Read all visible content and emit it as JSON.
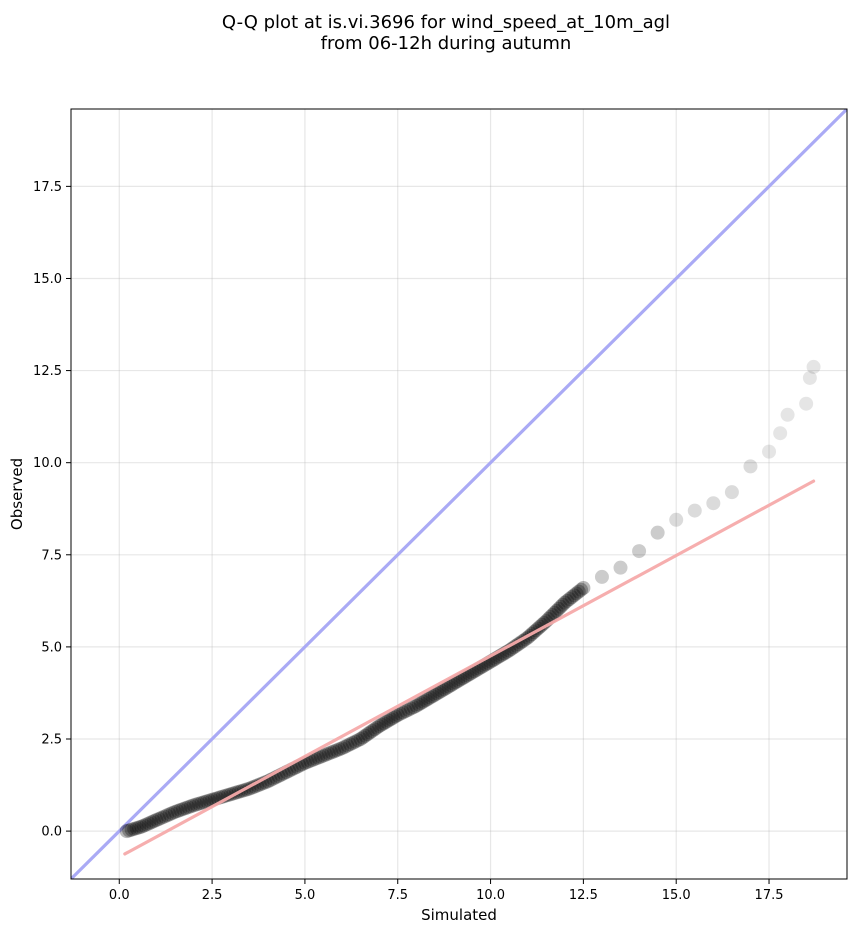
{
  "chart_data": {
    "type": "scatter",
    "title_lines": [
      "Q-Q plot at is.vi.3696 for wind_speed_at_10m_agl",
      "from 06-12h during autumn"
    ],
    "xlabel": "Simulated",
    "ylabel": "Observed",
    "xlim": [
      -1.3,
      19.6
    ],
    "ylim": [
      -1.3,
      19.6
    ],
    "xticks": [
      0.0,
      2.5,
      5.0,
      7.5,
      10.0,
      12.5,
      15.0,
      17.5
    ],
    "yticks": [
      0.0,
      2.5,
      5.0,
      7.5,
      10.0,
      12.5,
      15.0,
      17.5
    ],
    "xtick_labels": [
      "0.0",
      "2.5",
      "5.0",
      "7.5",
      "10.0",
      "12.5",
      "15.0",
      "17.5"
    ],
    "ytick_labels": [
      "0.0",
      "2.5",
      "5.0",
      "7.5",
      "10.0",
      "12.5",
      "15.0",
      "17.5"
    ],
    "grid": true,
    "identity_line": {
      "color": "#aaaaf5"
    },
    "fit_line": {
      "x": [
        0.15,
        18.7
      ],
      "y": [
        -0.62,
        9.5
      ],
      "color": "#f5aaaa"
    },
    "points": {
      "color": "#000000",
      "knots": [
        [
          0.2,
          0.0
        ],
        [
          0.6,
          0.12
        ],
        [
          1.0,
          0.3
        ],
        [
          1.5,
          0.52
        ],
        [
          2.0,
          0.7
        ],
        [
          2.5,
          0.85
        ],
        [
          3.0,
          1.0
        ],
        [
          3.5,
          1.15
        ],
        [
          4.0,
          1.35
        ],
        [
          4.5,
          1.6
        ],
        [
          5.0,
          1.85
        ],
        [
          5.5,
          2.05
        ],
        [
          6.0,
          2.25
        ],
        [
          6.5,
          2.5
        ],
        [
          7.0,
          2.85
        ],
        [
          7.5,
          3.15
        ],
        [
          8.0,
          3.4
        ],
        [
          8.5,
          3.7
        ],
        [
          9.0,
          4.0
        ],
        [
          9.5,
          4.3
        ],
        [
          10.0,
          4.6
        ],
        [
          10.5,
          4.9
        ],
        [
          11.0,
          5.25
        ],
        [
          11.5,
          5.7
        ],
        [
          12.0,
          6.2
        ],
        [
          12.5,
          6.6
        ],
        [
          13.0,
          6.9
        ],
        [
          13.5,
          7.15
        ],
        [
          14.0,
          7.6
        ],
        [
          14.5,
          8.1
        ],
        [
          15.0,
          8.45
        ],
        [
          15.5,
          8.7
        ],
        [
          16.0,
          8.9
        ],
        [
          16.5,
          9.2
        ],
        [
          17.0,
          9.9
        ],
        [
          17.5,
          10.3
        ],
        [
          17.8,
          10.8
        ],
        [
          18.0,
          11.3
        ],
        [
          18.5,
          11.6
        ],
        [
          18.6,
          12.3
        ],
        [
          18.7,
          12.6
        ]
      ]
    }
  }
}
